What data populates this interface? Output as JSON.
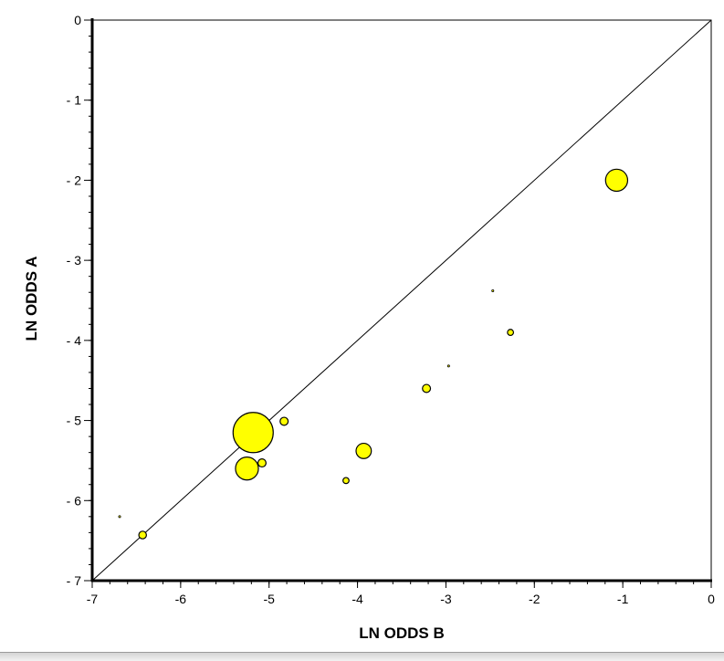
{
  "chart_data": {
    "type": "scatter",
    "title": "",
    "xlabel": "LN ODDS B",
    "ylabel": "LN ODDS A",
    "xlim": [
      -7,
      0
    ],
    "ylim": [
      0,
      7
    ],
    "y_inverted": true,
    "y_tick_style": "- N",
    "x_ticks": [
      {
        "value": -7,
        "label": "-7"
      },
      {
        "value": -6,
        "label": "-6"
      },
      {
        "value": -5,
        "label": "-5"
      },
      {
        "value": -4,
        "label": "-4"
      },
      {
        "value": -3,
        "label": "-3"
      },
      {
        "value": -2,
        "label": "-2"
      },
      {
        "value": -1,
        "label": "-1"
      },
      {
        "value": 0,
        "label": "0"
      }
    ],
    "y_ticks": [
      {
        "value": 0,
        "label": "0"
      },
      {
        "value": 1,
        "label": "- 1"
      },
      {
        "value": 2,
        "label": "- 2"
      },
      {
        "value": 3,
        "label": "- 3"
      },
      {
        "value": 4,
        "label": "- 4"
      },
      {
        "value": 5,
        "label": "- 5"
      },
      {
        "value": 6,
        "label": "- 6"
      },
      {
        "value": 7,
        "label": "- 7"
      }
    ],
    "reference_line": {
      "from": [
        -7,
        7
      ],
      "to": [
        0,
        0
      ]
    },
    "marker_color": "#ffff00",
    "marker_edge_color": "#000000",
    "points": [
      {
        "x": -5.18,
        "y": 5.15,
        "size": 1.0
      },
      {
        "x": -1.07,
        "y": 2.0,
        "size": 0.55
      },
      {
        "x": -5.25,
        "y": 5.6,
        "size": 0.57
      },
      {
        "x": -3.93,
        "y": 5.38,
        "size": 0.38
      },
      {
        "x": -5.08,
        "y": 5.53,
        "size": 0.2
      },
      {
        "x": -4.83,
        "y": 5.01,
        "size": 0.2
      },
      {
        "x": -3.22,
        "y": 4.6,
        "size": 0.2
      },
      {
        "x": -6.43,
        "y": 6.43,
        "size": 0.19
      },
      {
        "x": -4.13,
        "y": 5.75,
        "size": 0.15
      },
      {
        "x": -2.27,
        "y": 3.9,
        "size": 0.15
      },
      {
        "x": -2.47,
        "y": 3.38,
        "size": 0.05
      },
      {
        "x": -2.97,
        "y": 4.32,
        "size": 0.05
      },
      {
        "x": -6.69,
        "y": 6.2,
        "size": 0.05
      }
    ],
    "grid": false,
    "legend": "none"
  }
}
